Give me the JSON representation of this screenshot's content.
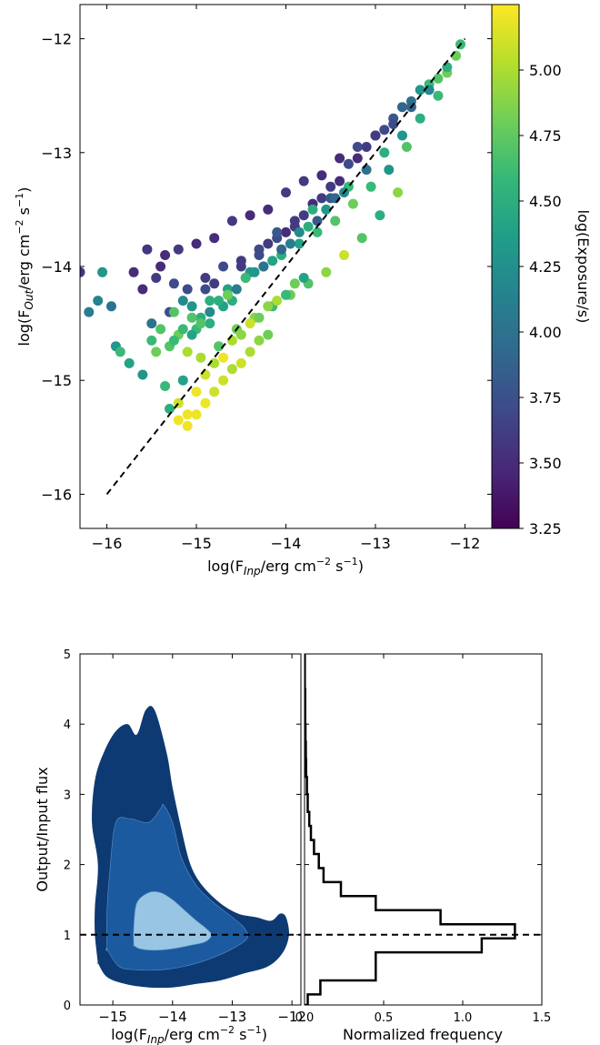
{
  "colors": {
    "colormap": [
      "#440154",
      "#482878",
      "#3e4989",
      "#31688e",
      "#26828e",
      "#1f9e89",
      "#35b779",
      "#6ece58",
      "#b5de2b",
      "#fde725"
    ],
    "contour_levels": [
      "#0e3a73",
      "#1c5a9f",
      "#98c5e3"
    ],
    "reference_line": "#000000",
    "histogram": "#000000"
  },
  "chart_data": [
    {
      "type": "scatter",
      "xlabel_main": "log(F",
      "xlabel_sub": "Inp",
      "xlabel_rest": "/erg cm",
      "xlabel_sup1": "−2",
      "xlabel_rest2": " s",
      "xlabel_sup2": "−1",
      "xlabel_end": ")",
      "ylabel_main": "log(F",
      "ylabel_sub": "Out",
      "ylabel_rest": "/erg cm",
      "ylabel_sup1": "−2",
      "ylabel_rest2": " s",
      "ylabel_sup2": "−1",
      "ylabel_end": ")",
      "xlim": [
        -16.3,
        -11.7
      ],
      "ylim": [
        -16.3,
        -11.7
      ],
      "xticks": [
        -16,
        -15,
        -14,
        -13,
        -12
      ],
      "yticks": [
        -16,
        -15,
        -14,
        -13,
        -12
      ],
      "xtick_labels": [
        "−16",
        "−15",
        "−14",
        "−13",
        "−12"
      ],
      "ytick_labels": [
        "−16",
        "−15",
        "−14",
        "−13",
        "−12"
      ],
      "reference_line": {
        "style": "dashed",
        "x": [
          -16,
          -12
        ],
        "y": [
          -16,
          -12
        ]
      },
      "colorbar": {
        "label": "log(Exposure/s)",
        "range": [
          3.25,
          5.25
        ],
        "ticks": [
          3.25,
          3.5,
          3.75,
          4.0,
          4.25,
          4.5,
          4.75,
          5.0
        ],
        "tick_labels": [
          "3.25",
          "3.50",
          "3.75",
          "4.00",
          "4.25",
          "4.50",
          "4.75",
          "5.00"
        ]
      },
      "points_x": [
        -16.3,
        -16.2,
        -16.1,
        -16.05,
        -15.95,
        -15.9,
        -15.85,
        -15.75,
        -15.7,
        -15.6,
        -15.55,
        -15.5,
        -15.45,
        -15.4,
        -15.35,
        -15.3,
        -15.25,
        -15.2,
        -15.15,
        -15.1,
        -15.05,
        -15.0,
        -14.95,
        -14.9,
        -14.85,
        -14.8,
        -14.7,
        -14.6,
        -14.5,
        -14.4,
        -14.3,
        -14.2,
        -14.1,
        -14.0,
        -13.9,
        -13.8,
        -13.7,
        -13.6,
        -13.5,
        -13.4,
        -13.3,
        -13.2,
        -13.1,
        -13.0,
        -12.9,
        -12.8,
        -12.7,
        -12.6,
        -12.5,
        -12.4,
        -12.3,
        -12.2,
        -12.1,
        -12.05,
        -15.6,
        -15.4,
        -15.2,
        -15.0,
        -14.8,
        -14.6,
        -14.4,
        -14.2,
        -14.0,
        -13.8,
        -13.6,
        -13.4,
        -13.2,
        -13.0,
        -12.8,
        -12.6,
        -12.4,
        -12.2,
        -15.5,
        -15.3,
        -15.1,
        -14.9,
        -14.7,
        -14.5,
        -14.3,
        -14.1,
        -13.9,
        -13.7,
        -13.5,
        -13.3,
        -13.1,
        -12.9,
        -12.7,
        -12.5,
        -12.3,
        -15.45,
        -15.25,
        -15.05,
        -14.85,
        -14.65,
        -14.45,
        -14.25,
        -14.05,
        -13.85,
        -13.65,
        -13.45,
        -13.25,
        -13.05,
        -12.85,
        -12.65,
        -15.15,
        -14.95,
        -14.75,
        -14.55,
        -14.35,
        -14.15,
        -13.95,
        -13.75,
        -13.55,
        -13.35,
        -13.15,
        -12.95,
        -12.75,
        -15.35,
        -15.2,
        -15.1,
        -15.0,
        -14.9,
        -14.8,
        -14.7,
        -14.6,
        -14.5,
        -14.4,
        -14.3,
        -14.2,
        -14.1,
        -14.0,
        -13.9,
        -13.8,
        -15.3,
        -15.2,
        -15.1,
        -15.0,
        -14.9,
        -14.8,
        -14.7,
        -14.6,
        -14.5,
        -14.4,
        -14.3,
        -14.2,
        -15.25,
        -15.15,
        -15.05,
        -14.95,
        -14.85,
        -14.75,
        -14.65,
        -14.55,
        -14.45,
        -14.35,
        -14.25,
        -14.15,
        -14.05,
        -13.95,
        -13.85,
        -13.75,
        -13.65,
        -13.55,
        -13.45,
        -13.35
      ],
      "points_y": [
        -14.05,
        -14.4,
        -14.3,
        -14.05,
        -14.35,
        -14.7,
        -14.75,
        -14.85,
        -14.05,
        -14.95,
        -13.85,
        -14.65,
        -14.1,
        -14.55,
        -13.9,
        -14.7,
        -14.15,
        -14.6,
        -14.3,
        -14.75,
        -14.35,
        -14.55,
        -14.45,
        -14.2,
        -14.5,
        -14.15,
        -14.35,
        -14.3,
        -14.0,
        -14.05,
        -13.9,
        -13.8,
        -13.75,
        -13.7,
        -13.65,
        -13.55,
        -13.45,
        -13.4,
        -13.3,
        -13.25,
        -13.1,
        -13.05,
        -12.95,
        -12.85,
        -12.8,
        -12.7,
        -12.6,
        -12.55,
        -12.45,
        -12.4,
        -12.35,
        -12.3,
        -12.15,
        -12.05,
        -14.2,
        -14.0,
        -13.85,
        -13.8,
        -13.75,
        -13.6,
        -13.55,
        -13.5,
        -13.35,
        -13.25,
        -13.2,
        -13.05,
        -12.95,
        -12.85,
        -12.75,
        -12.6,
        -12.45,
        -12.25,
        -14.5,
        -14.4,
        -14.2,
        -14.1,
        -14.0,
        -13.95,
        -13.85,
        -13.7,
        -13.6,
        -13.5,
        -13.4,
        -13.3,
        -13.15,
        -13.0,
        -12.85,
        -12.7,
        -12.5,
        -14.75,
        -14.65,
        -14.45,
        -14.3,
        -14.2,
        -14.1,
        -14.0,
        -13.9,
        -13.8,
        -13.7,
        -13.6,
        -13.45,
        -13.3,
        -13.15,
        -12.95,
        -15.0,
        -14.8,
        -14.7,
        -14.55,
        -14.45,
        -14.35,
        -14.25,
        -14.15,
        -14.05,
        -13.9,
        -13.75,
        -13.55,
        -13.35,
        -15.05,
        -15.2,
        -15.3,
        -15.1,
        -14.95,
        -14.85,
        -14.8,
        -14.65,
        -14.6,
        -14.5,
        -14.45,
        -14.35,
        -14.3,
        -14.25,
        -14.15,
        -14.1,
        -15.25,
        -15.35,
        -15.4,
        -15.3,
        -15.2,
        -15.1,
        -15.0,
        -14.9,
        -14.85,
        -14.75,
        -14.65,
        -14.6,
        -14.4,
        -14.55,
        -14.6,
        -14.5,
        -14.4,
        -14.3,
        -14.25,
        -14.2,
        -14.1,
        -14.05,
        -14.0,
        -13.95,
        -13.85,
        -13.8,
        -13.7,
        -13.65,
        -13.6,
        -13.5,
        -13.4,
        -13.35
      ],
      "points_c": [
        3.55,
        4.1,
        4.15,
        4.3,
        4.0,
        4.3,
        4.6,
        4.4,
        3.5,
        4.3,
        3.55,
        4.6,
        3.6,
        4.7,
        3.5,
        4.7,
        3.7,
        4.8,
        4.2,
        5.0,
        4.3,
        4.6,
        4.5,
        3.7,
        4.5,
        3.6,
        4.4,
        4.5,
        3.6,
        4.3,
        3.7,
        3.6,
        3.7,
        3.5,
        3.6,
        3.6,
        3.5,
        3.6,
        3.6,
        3.5,
        3.7,
        3.5,
        3.6,
        3.6,
        3.7,
        3.8,
        3.9,
        4.0,
        4.3,
        4.6,
        4.7,
        4.8,
        4.8,
        4.6,
        3.5,
        3.5,
        3.6,
        3.5,
        3.5,
        3.6,
        3.5,
        3.5,
        3.6,
        3.6,
        3.5,
        3.5,
        3.7,
        3.6,
        3.7,
        3.9,
        4.2,
        4.5,
        4.0,
        3.7,
        3.7,
        3.6,
        3.7,
        3.6,
        3.7,
        3.8,
        3.6,
        4.5,
        3.8,
        4.6,
        4.0,
        4.5,
        4.3,
        4.5,
        4.6,
        4.8,
        4.6,
        4.7,
        4.5,
        4.4,
        4.6,
        4.3,
        4.5,
        4.4,
        4.6,
        4.7,
        4.8,
        4.6,
        4.3,
        4.7,
        4.4,
        5.0,
        4.7,
        4.8,
        4.9,
        4.6,
        4.8,
        4.7,
        4.9,
        5.1,
        4.7,
        4.5,
        4.9,
        4.6,
        5.1,
        5.2,
        5.2,
        5.1,
        5.0,
        5.2,
        5.0,
        4.9,
        5.1,
        4.8,
        4.9,
        5.0,
        4.6,
        4.8,
        4.4,
        4.5,
        5.2,
        5.2,
        5.2,
        5.2,
        5.1,
        5.1,
        5.0,
        5.1,
        5.0,
        4.9,
        4.8,
        4.7,
        4.6,
        4.4,
        4.7,
        4.2,
        4.5,
        4.8,
        4.1,
        4.6,
        4.3,
        4.0,
        4.4,
        3.9,
        4.1,
        4.2,
        4.5,
        3.8,
        4.3,
        3.9,
        4.2,
        4.0
      ]
    },
    {
      "type": "contour",
      "xlabel_main": "log(F",
      "xlabel_sub": "Inp",
      "xlabel_rest": "/erg cm",
      "xlabel_sup1": "−2",
      "xlabel_rest2": " s",
      "xlabel_sup2": "−1",
      "xlabel_end": ")",
      "ylabel": "Output/Input flux",
      "xlim": [
        -15.55,
        -11.85
      ],
      "ylim": [
        0,
        5
      ],
      "xticks": [
        -15,
        -14,
        -13,
        -12
      ],
      "xtick_labels": [
        "−15",
        "−14",
        "−13",
        "−12"
      ],
      "yticks": [
        0,
        1,
        2,
        3,
        4,
        5
      ],
      "ytick_labels": [
        "0",
        "1",
        "2",
        "3",
        "4",
        "5"
      ],
      "reference_line": {
        "style": "dashed",
        "y": 1
      },
      "contours": [
        {
          "level": "outer",
          "x": [
            -15.25,
            -15.3,
            -15.3,
            -15.25,
            -15.35,
            -15.3,
            -15.15,
            -14.95,
            -14.75,
            -14.6,
            -14.45,
            -14.3,
            -14.1,
            -14.0,
            -13.85,
            -13.7,
            -13.5,
            -13.2,
            -12.9,
            -12.6,
            -12.35,
            -12.2,
            -12.1,
            -12.05,
            -12.15,
            -12.4,
            -12.8,
            -13.2,
            -13.6,
            -14.0,
            -14.4,
            -14.8,
            -15.1,
            -15.25
          ],
          "y": [
            0.6,
            1.0,
            1.4,
            2.0,
            2.6,
            3.2,
            3.6,
            3.9,
            4.0,
            3.85,
            4.2,
            4.2,
            3.6,
            3.1,
            2.5,
            2.0,
            1.7,
            1.45,
            1.3,
            1.25,
            1.2,
            1.3,
            1.25,
            1.0,
            0.75,
            0.55,
            0.45,
            0.35,
            0.3,
            0.25,
            0.25,
            0.3,
            0.4,
            0.6
          ]
        },
        {
          "level": "middle",
          "x": [
            -15.1,
            -15.1,
            -15.05,
            -14.95,
            -14.7,
            -14.4,
            -14.2,
            -14.15,
            -14.0,
            -13.85,
            -13.6,
            -13.3,
            -13.0,
            -12.8,
            -12.75,
            -13.0,
            -13.4,
            -13.8,
            -14.2,
            -14.6,
            -14.9,
            -15.1
          ],
          "y": [
            0.8,
            1.3,
            1.9,
            2.6,
            2.65,
            2.6,
            2.8,
            2.85,
            2.6,
            2.1,
            1.7,
            1.45,
            1.25,
            1.1,
            0.95,
            0.8,
            0.65,
            0.55,
            0.5,
            0.5,
            0.55,
            0.8
          ]
        },
        {
          "level": "inner",
          "x": [
            -14.65,
            -14.65,
            -14.6,
            -14.4,
            -14.2,
            -14.0,
            -13.8,
            -13.6,
            -13.45,
            -13.35,
            -13.45,
            -13.7,
            -14.0,
            -14.3,
            -14.55,
            -14.65
          ],
          "y": [
            0.85,
            1.1,
            1.45,
            1.6,
            1.6,
            1.5,
            1.35,
            1.2,
            1.1,
            1.0,
            0.9,
            0.85,
            0.8,
            0.78,
            0.8,
            0.85
          ]
        }
      ]
    },
    {
      "type": "histogram",
      "orientation": "horizontal",
      "xlabel": "Normalized frequency",
      "xlim": [
        0,
        1.5
      ],
      "ylim": [
        0,
        5
      ],
      "xticks": [
        0.0,
        0.5,
        1.0,
        1.5
      ],
      "xtick_labels": [
        "0.0",
        "0.5",
        "1.0",
        "1.5"
      ],
      "reference_line": {
        "style": "dashed",
        "y": 1
      },
      "bin_edges": [
        0,
        0.15,
        0.35,
        0.75,
        0.95,
        1.15,
        1.35,
        1.55,
        1.75,
        1.95,
        2.15,
        2.35,
        2.55,
        2.75,
        3.0,
        3.25,
        3.5,
        3.75,
        4.0,
        4.5,
        5.0
      ],
      "frequencies": [
        0.02,
        0.1,
        0.45,
        1.12,
        1.33,
        0.86,
        0.45,
        0.23,
        0.12,
        0.09,
        0.06,
        0.04,
        0.03,
        0.02,
        0.015,
        0.01,
        0.008,
        0.006,
        0.004,
        0.002
      ]
    }
  ]
}
